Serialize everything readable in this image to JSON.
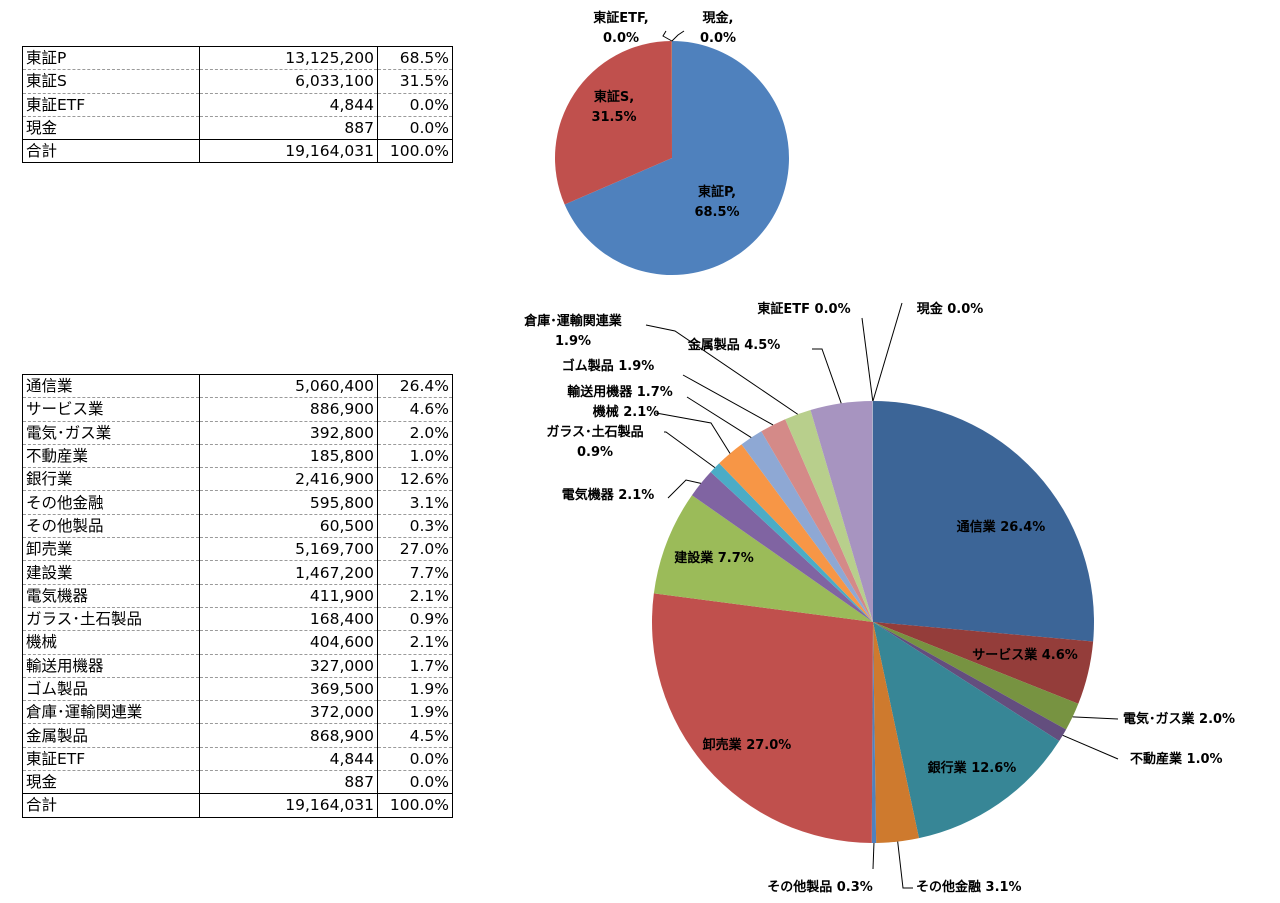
{
  "table_market": {
    "rows": [
      {
        "name": "東証P",
        "value": "13,125,200",
        "pct": "68.5%"
      },
      {
        "name": "東証S",
        "value": "6,033,100",
        "pct": "31.5%"
      },
      {
        "name": "東証ETF",
        "value": "4,844",
        "pct": "0.0%"
      },
      {
        "name": "現金",
        "value": "887",
        "pct": "0.0%"
      }
    ],
    "total": {
      "name": "合計",
      "value": "19,164,031",
      "pct": "100.0%"
    }
  },
  "table_sector": {
    "rows": [
      {
        "name": "通信業",
        "value": "5,060,400",
        "pct": "26.4%"
      },
      {
        "name": "サービス業",
        "value": "886,900",
        "pct": "4.6%"
      },
      {
        "name": "電気･ガス業",
        "value": "392,800",
        "pct": "2.0%"
      },
      {
        "name": "不動産業",
        "value": "185,800",
        "pct": "1.0%"
      },
      {
        "name": "銀行業",
        "value": "2,416,900",
        "pct": "12.6%"
      },
      {
        "name": "その他金融",
        "value": "595,800",
        "pct": "3.1%"
      },
      {
        "name": "その他製品",
        "value": "60,500",
        "pct": "0.3%"
      },
      {
        "name": "卸売業",
        "value": "5,169,700",
        "pct": "27.0%"
      },
      {
        "name": "建設業",
        "value": "1,467,200",
        "pct": "7.7%"
      },
      {
        "name": "電気機器",
        "value": "411,900",
        "pct": "2.1%"
      },
      {
        "name": "ガラス･土石製品",
        "value": "168,400",
        "pct": "0.9%"
      },
      {
        "name": "機械",
        "value": "404,600",
        "pct": "2.1%"
      },
      {
        "name": "輸送用機器",
        "value": "327,000",
        "pct": "1.7%"
      },
      {
        "name": "ゴム製品",
        "value": "369,500",
        "pct": "1.9%"
      },
      {
        "name": "倉庫･運輸関連業",
        "value": "372,000",
        "pct": "1.9%"
      },
      {
        "name": "金属製品",
        "value": "868,900",
        "pct": "4.5%"
      },
      {
        "name": "東証ETF",
        "value": "4,844",
        "pct": "0.0%"
      },
      {
        "name": "現金",
        "value": "887",
        "pct": "0.0%"
      }
    ],
    "total": {
      "name": "合計",
      "value": "19,164,031",
      "pct": "100.0%"
    }
  },
  "chart_data": [
    {
      "type": "pie",
      "categories": [
        "東証P",
        "東証S",
        "東証ETF",
        "現金"
      ],
      "values": [
        13125200,
        6033100,
        4844,
        887
      ],
      "data_labels": [
        [
          "東証P,",
          "68.5%"
        ],
        [
          "東証S,",
          "31.5%"
        ],
        [
          "東証ETF,",
          "0.0%"
        ],
        [
          "現金,",
          "0.0%"
        ]
      ],
      "colors": [
        "#4F81BD",
        "#C0504D",
        "#9BBB59",
        "#8064A2"
      ]
    },
    {
      "type": "pie",
      "categories": [
        "通信業",
        "サービス業",
        "電気･ガス業",
        "不動産業",
        "銀行業",
        "その他金融",
        "その他製品",
        "卸売業",
        "建設業",
        "電気機器",
        "ガラス･土石製品",
        "機械",
        "輸送用機器",
        "ゴム製品",
        "倉庫･運輸関連業",
        "金属製品",
        "東証ETF",
        "現金"
      ],
      "values": [
        5060400,
        886900,
        392800,
        185800,
        2416900,
        595800,
        60500,
        5169700,
        1467200,
        411900,
        168400,
        404600,
        327000,
        369500,
        372000,
        868900,
        4844,
        887
      ],
      "data_labels": [
        [
          "通信業 26.4%"
        ],
        [
          "サービス業 4.6%"
        ],
        [
          "電気･ガス業 2.0%"
        ],
        [
          "不動産業 1.0%"
        ],
        [
          "銀行業 12.6%"
        ],
        [
          "その他金融 3.1%"
        ],
        [
          "その他製品 0.3%"
        ],
        [
          "卸売業 27.0%"
        ],
        [
          "建設業 7.7%"
        ],
        [
          "電気機器 2.1%"
        ],
        [
          "ガラス･土石製品",
          "0.9%"
        ],
        [
          "機械 2.1%"
        ],
        [
          "輸送用機器 1.7%"
        ],
        [
          "ゴム製品 1.9%"
        ],
        [
          "倉庫･運輸関連業",
          "1.9%"
        ],
        [
          "金属製品 4.5%"
        ],
        [
          "東証ETF 0.0%"
        ],
        [
          "現金 0.0%"
        ]
      ],
      "colors": [
        "#3C6597",
        "#943D3A",
        "#779341",
        "#634E7E",
        "#378696",
        "#CE7A2E",
        "#4F81BD",
        "#C0504D",
        "#9BBB59",
        "#8064A2",
        "#4BACC6",
        "#F79646",
        "#8EA8D4",
        "#D48A88",
        "#B8CF8C",
        "#A794C0",
        "#8FCFE0",
        "#FAB57E"
      ]
    }
  ]
}
